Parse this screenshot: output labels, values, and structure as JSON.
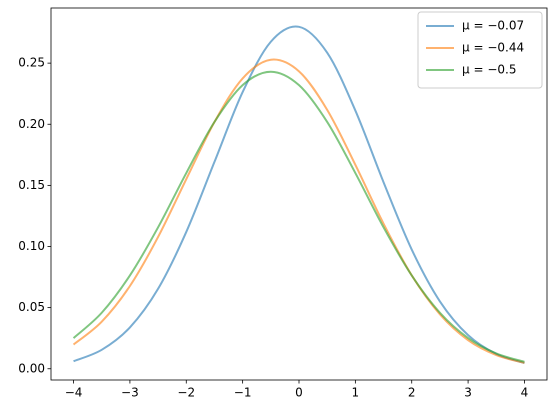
{
  "chart_data": {
    "type": "line",
    "x": [
      -4,
      -3.5,
      -3,
      -2.5,
      -2,
      -1.5,
      -1,
      -0.5,
      0,
      0.5,
      1,
      1.5,
      2,
      2.5,
      3,
      3.5,
      4
    ],
    "series": [
      {
        "name": "μ = −0.07",
        "color": "#1f77b4",
        "values": [
          0.0062,
          0.0155,
          0.0338,
          0.0654,
          0.1119,
          0.1692,
          0.2263,
          0.2675,
          0.2797,
          0.2585,
          0.2112,
          0.1526,
          0.0975,
          0.0551,
          0.0275,
          0.0121,
          0.0047
        ]
      },
      {
        "name": "μ = −0.44",
        "color": "#ff7f0e",
        "values": [
          0.0198,
          0.0385,
          0.0677,
          0.1078,
          0.1551,
          0.2018,
          0.2375,
          0.2528,
          0.2433,
          0.2118,
          0.1668,
          0.1187,
          0.0764,
          0.0445,
          0.0234,
          0.0112,
          0.0048
        ]
      },
      {
        "name": "μ = −0.5",
        "color": "#2ca02c",
        "values": [
          0.0251,
          0.0458,
          0.0763,
          0.1157,
          0.1601,
          0.2019,
          0.232,
          0.243,
          0.232,
          0.2019,
          0.1601,
          0.1157,
          0.0763,
          0.0458,
          0.0251,
          0.0125,
          0.0057
        ]
      }
    ],
    "xlim": [
      -4.4,
      4.4
    ],
    "ylim": [
      -0.0092,
      0.2951
    ],
    "xticks": [
      {
        "value": -4,
        "label": "−4"
      },
      {
        "value": -3,
        "label": "−3"
      },
      {
        "value": -2,
        "label": "−2"
      },
      {
        "value": -1,
        "label": "−1"
      },
      0,
      1,
      2,
      3,
      4
    ],
    "yticks": [
      {
        "value": 0,
        "label": "0.00"
      },
      {
        "value": 0.05,
        "label": "0.05"
      },
      {
        "value": 0.1,
        "label": "0.10"
      },
      {
        "value": 0.15,
        "label": "0.15"
      },
      {
        "value": 0.2,
        "label": "0.20"
      },
      {
        "value": 0.25,
        "label": "0.25"
      }
    ],
    "legend": "upper right",
    "grid": false
  }
}
